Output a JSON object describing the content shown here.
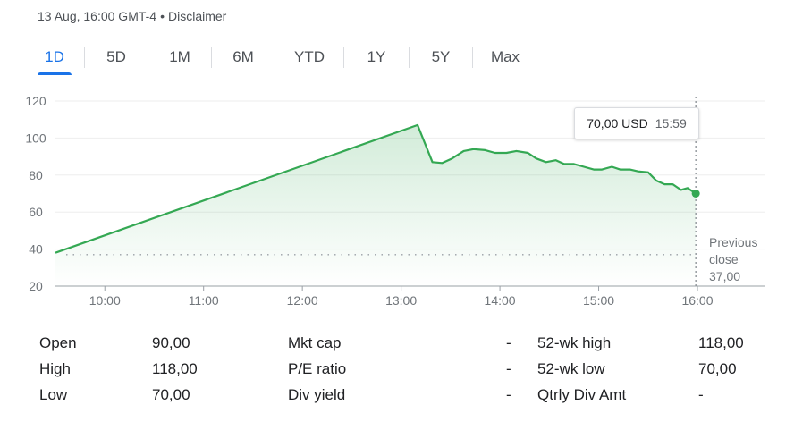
{
  "header": {
    "timestamp": "13 Aug, 16:00 GMT-4",
    "separator": "•",
    "disclaimer": "Disclaimer"
  },
  "tabs": [
    {
      "label": "1D",
      "active": true
    },
    {
      "label": "5D",
      "active": false
    },
    {
      "label": "1M",
      "active": false
    },
    {
      "label": "6M",
      "active": false
    },
    {
      "label": "YTD",
      "active": false
    },
    {
      "label": "1Y",
      "active": false
    },
    {
      "label": "5Y",
      "active": false
    },
    {
      "label": "Max",
      "active": false
    }
  ],
  "tooltip": {
    "price": "70,00 USD",
    "time": "15:59"
  },
  "chart_data": {
    "type": "area",
    "y_ticks": [
      "120",
      "100",
      "80",
      "60",
      "40",
      "20"
    ],
    "x_ticks": [
      "10:00",
      "11:00",
      "12:00",
      "13:00",
      "14:00",
      "15:00",
      "16:00"
    ],
    "ylim": [
      20,
      120
    ],
    "xlim": [
      "09:30",
      "16:00"
    ],
    "grid": true,
    "series_color": "#34a853",
    "previous_close": {
      "label_lines": [
        "Previous",
        "close",
        "37,00"
      ],
      "value": 37
    },
    "series": [
      {
        "values": [
          [
            "09:30",
            38
          ],
          [
            "13:10",
            107
          ],
          [
            "13:19",
            87
          ],
          [
            "13:25",
            86.5
          ],
          [
            "13:31",
            89
          ],
          [
            "13:38",
            93
          ],
          [
            "13:44",
            94
          ],
          [
            "13:51",
            93.5
          ],
          [
            "13:57",
            92
          ],
          [
            "14:04",
            92
          ],
          [
            "14:10",
            93
          ],
          [
            "14:17",
            92
          ],
          [
            "14:22",
            89
          ],
          [
            "14:28",
            87
          ],
          [
            "14:34",
            88
          ],
          [
            "14:39",
            86
          ],
          [
            "14:45",
            86
          ],
          [
            "14:51",
            84.5
          ],
          [
            "14:57",
            83
          ],
          [
            "15:02",
            83
          ],
          [
            "15:08",
            84.5
          ],
          [
            "15:13",
            83
          ],
          [
            "15:19",
            83
          ],
          [
            "15:24",
            82
          ],
          [
            "15:30",
            81.5
          ],
          [
            "15:35",
            77
          ],
          [
            "15:40",
            75
          ],
          [
            "15:45",
            75
          ],
          [
            "15:50",
            72
          ],
          [
            "15:54",
            73
          ],
          [
            "15:59",
            70
          ]
        ]
      }
    ]
  },
  "stats": {
    "open_label": "Open",
    "open_value": "90,00",
    "high_label": "High",
    "high_value": "118,00",
    "low_label": "Low",
    "low_value": "70,00",
    "mktcap_label": "Mkt cap",
    "mktcap_value": "-",
    "pe_label": "P/E ratio",
    "pe_value": "-",
    "divyield_label": "Div yield",
    "divyield_value": "-",
    "wkhigh_label": "52-wk high",
    "wkhigh_value": "118,00",
    "wklow_label": "52-wk low",
    "wklow_value": "70,00",
    "qtrlydiv_label": "Qtrly Div Amt",
    "qtrlydiv_value": "-"
  }
}
